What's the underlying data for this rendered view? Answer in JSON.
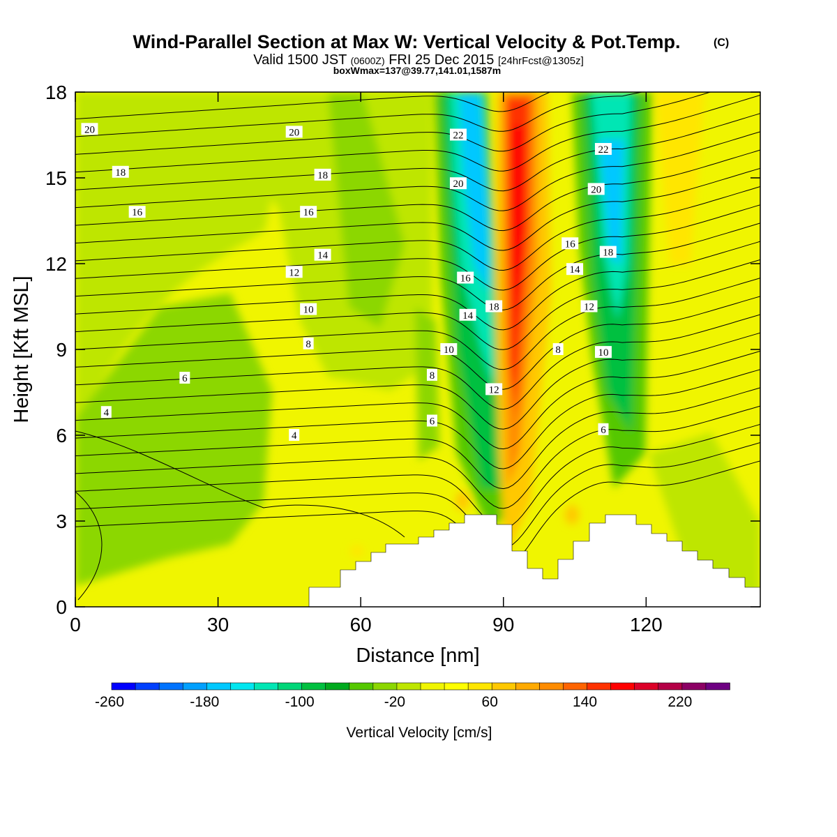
{
  "chart_data": {
    "type": "heatmap",
    "title": "Wind-Parallel Section at Max W: Vertical Velocity & Pot.Temp.",
    "title_mark": "(C)",
    "subtitle": {
      "prefix": "Valid 1500 JST",
      "zulu": "(0600Z)",
      "date": "FRI 25 Dec 2015",
      "forecast": "[24hrFcst@1305z]"
    },
    "subtitle2": "boxWmax=137@39.77,141.01,1587m",
    "xlabel": "Distance [nm]",
    "ylabel": "Height [Kft MSL]",
    "xlim": [
      0,
      144
    ],
    "ylim": [
      0,
      18
    ],
    "x_ticks": [
      0,
      30,
      60,
      90,
      120
    ],
    "y_ticks": [
      0,
      3,
      6,
      9,
      12,
      15,
      18
    ],
    "colorbar": {
      "label": "Vertical Velocity [cm/s]",
      "min": -260,
      "max": 260,
      "step": 20,
      "tick_labels": [
        -260,
        -180,
        -100,
        -20,
        60,
        140,
        220
      ],
      "colors": [
        "#0000ff",
        "#0040ff",
        "#0073ff",
        "#00a0ff",
        "#00c8ff",
        "#00e6f0",
        "#00e6b4",
        "#00d678",
        "#00c040",
        "#00aa1e",
        "#55c800",
        "#8cd700",
        "#bee600",
        "#f0f500",
        "#ffff00",
        "#ffe600",
        "#ffc800",
        "#ffaa00",
        "#ff8c00",
        "#ff6400",
        "#ff3200",
        "#ff0000",
        "#dc0028",
        "#b40046",
        "#8c0064",
        "#6e0082"
      ]
    },
    "theta_labels": [
      {
        "text": "20",
        "x": 3,
        "y": 16.7
      },
      {
        "text": "18",
        "x": 9.5,
        "y": 15.2
      },
      {
        "text": "16",
        "x": 13,
        "y": 13.8
      },
      {
        "text": "4",
        "x": 6.5,
        "y": 6.8
      },
      {
        "text": "6",
        "x": 23,
        "y": 8.0
      },
      {
        "text": "20",
        "x": 46,
        "y": 16.6
      },
      {
        "text": "18",
        "x": 52,
        "y": 15.1
      },
      {
        "text": "16",
        "x": 49,
        "y": 13.8
      },
      {
        "text": "14",
        "x": 52,
        "y": 12.3
      },
      {
        "text": "12",
        "x": 46,
        "y": 11.7
      },
      {
        "text": "10",
        "x": 49,
        "y": 10.4
      },
      {
        "text": "8",
        "x": 49,
        "y": 9.2
      },
      {
        "text": "4",
        "x": 46,
        "y": 6.0
      },
      {
        "text": "22",
        "x": 80.5,
        "y": 16.5
      },
      {
        "text": "20",
        "x": 80.5,
        "y": 14.8
      },
      {
        "text": "16",
        "x": 82,
        "y": 11.5
      },
      {
        "text": "14",
        "x": 82.5,
        "y": 10.2
      },
      {
        "text": "18",
        "x": 88,
        "y": 10.5
      },
      {
        "text": "10",
        "x": 78.5,
        "y": 9.0
      },
      {
        "text": "8",
        "x": 75,
        "y": 8.1
      },
      {
        "text": "12",
        "x": 88,
        "y": 7.6
      },
      {
        "text": "6",
        "x": 75,
        "y": 6.5
      },
      {
        "text": "22",
        "x": 111,
        "y": 16.0
      },
      {
        "text": "20",
        "x": 109.5,
        "y": 14.6
      },
      {
        "text": "16",
        "x": 104,
        "y": 12.7
      },
      {
        "text": "18",
        "x": 112,
        "y": 12.4
      },
      {
        "text": "14",
        "x": 105,
        "y": 11.8
      },
      {
        "text": "12",
        "x": 108,
        "y": 10.5
      },
      {
        "text": "8",
        "x": 101.5,
        "y": 9.0
      },
      {
        "text": "10",
        "x": 111,
        "y": 8.9
      },
      {
        "text": "6",
        "x": 111,
        "y": 6.2
      }
    ]
  }
}
